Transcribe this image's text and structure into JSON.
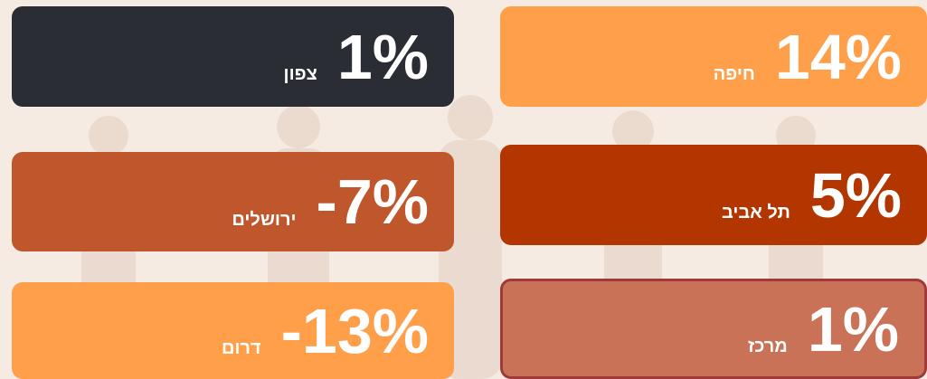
{
  "tiles": [
    {
      "label": "חיפה",
      "value": "14%",
      "color": "#ff9f4a"
    },
    {
      "label": "צפון",
      "value": "1%",
      "color": "#2a2d33"
    },
    {
      "label": "תל אביב",
      "value": "5%",
      "color": "#b33500"
    },
    {
      "label": "ירושלים",
      "value": "-7%",
      "color": "#c0562c"
    },
    {
      "label": "מרכז",
      "value": "1%",
      "color": "#c97257",
      "border": "#9e3a3a"
    },
    {
      "label": "דרום",
      "value": "-13%",
      "color": "#ff9f4a"
    }
  ]
}
